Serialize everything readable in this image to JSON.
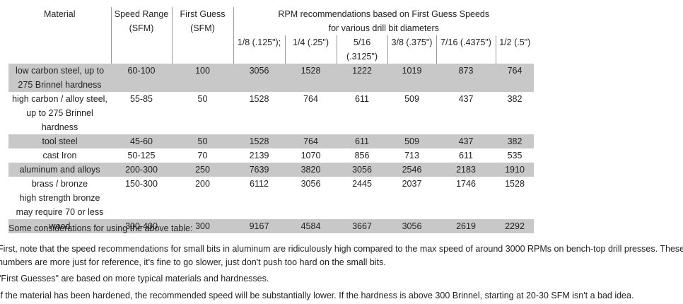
{
  "table": {
    "headers": {
      "material": "Material",
      "speed_range": "Speed Range (SFM)",
      "first_guess": "First Guess (SFM)",
      "rpm_heading": [
        "RPM recommendations based on First Guess Speeds",
        "for various drill bit diameters"
      ],
      "diameters": [
        "1/8 (.125\");",
        "1/4 (.25\")",
        "5/16 (.3125\")",
        "3/8 (.375\")",
        "7/16 (.4375\")",
        "1/2 (.5\")"
      ]
    },
    "rows": [
      {
        "material": "low carbon steel, up to 275 Brinnel hardness",
        "speed_range": "60-100",
        "first_guess": "100",
        "rpm": [
          "3056",
          "1528",
          "1222",
          "1019",
          "873",
          "764"
        ]
      },
      {
        "material": "high carbon / alloy steel, up to 275 Brinnel hardness",
        "speed_range": "55-85",
        "first_guess": "50",
        "rpm": [
          "1528",
          "764",
          "611",
          "509",
          "437",
          "382"
        ]
      },
      {
        "material": "tool steel",
        "speed_range": "45-60",
        "first_guess": "50",
        "rpm": [
          "1528",
          "764",
          "611",
          "509",
          "437",
          "382"
        ]
      },
      {
        "material": "cast Iron",
        "speed_range": "50-125",
        "first_guess": "70",
        "rpm": [
          "2139",
          "1070",
          "856",
          "713",
          "611",
          "535"
        ]
      },
      {
        "material": "aluminum and alloys",
        "speed_range": "200-300",
        "first_guess": "250",
        "rpm": [
          "7639",
          "3820",
          "3056",
          "2546",
          "2183",
          "1910"
        ]
      },
      {
        "material": "brass / bronze",
        "note": "high strength bronze may require 70 or less",
        "speed_range": "150-300",
        "first_guess": "200",
        "rpm": [
          "6112",
          "3056",
          "2445",
          "2037",
          "1746",
          "1528"
        ]
      },
      {
        "material": "wood",
        "speed_range": "300-400",
        "first_guess": "300",
        "rpm": [
          "9167",
          "4584",
          "3667",
          "3056",
          "2619",
          "2292"
        ]
      }
    ]
  },
  "notes": {
    "intro": "Some considerations for using the above table:",
    "items": [
      "First, note that the speed recommendations for small bits in aluminum are ridiculously high compared to the max speed of around 3000 RPMs on bench-top drill presses. These numbers are more just for reference, it's fine to go slower, just don't push too hard on the small bits.",
      "\"First Guesses\" are based on more typical materials and hardnesses.",
      "If the material has been hardened, the recommended speed will be substantially lower. If the hardness is above 300 Brinnel, starting at 20-30 SFM isn't a bad idea."
    ]
  }
}
